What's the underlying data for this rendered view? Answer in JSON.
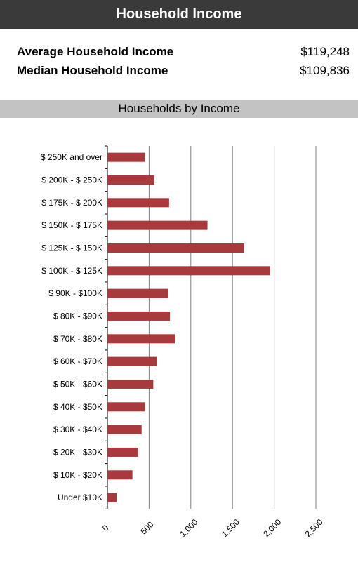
{
  "header": {
    "title": "Household Income"
  },
  "stats": [
    {
      "label": "Average Household Income",
      "value": "$119,248"
    },
    {
      "label": "Median Household Income",
      "value": "$109,836"
    }
  ],
  "section_title": "Households by Income",
  "colors": {
    "bar": "#a83a3e",
    "header_bg": "#3a3a3a",
    "subheader_bg": "#c3c3c3",
    "grid": "#808080"
  },
  "chart_data": {
    "type": "bar",
    "orientation": "horizontal",
    "title": "Households by Income",
    "categories": [
      "$ 250K and over",
      "$ 200K - $ 250K",
      "$ 175K - $ 200K",
      "$ 150K - $ 175K",
      "$ 125K - $ 150K",
      "$ 100K - $ 125K",
      "$ 90K - $100K",
      "$ 80K - $90K",
      "$ 70K - $80K",
      "$ 60K - $70K",
      "$ 50K - $60K",
      "$ 40K - $50K",
      "$ 30K - $40K",
      "$ 20K - $30K",
      "$ 10K - $20K",
      "Under $10K"
    ],
    "values": [
      450,
      560,
      740,
      1200,
      1640,
      1950,
      730,
      750,
      810,
      590,
      550,
      450,
      410,
      370,
      300,
      110
    ],
    "xlim": [
      0,
      2500
    ],
    "xticks": [
      "0",
      "500",
      "1,000",
      "1,500",
      "2,000",
      "2,500"
    ],
    "grid": true
  }
}
